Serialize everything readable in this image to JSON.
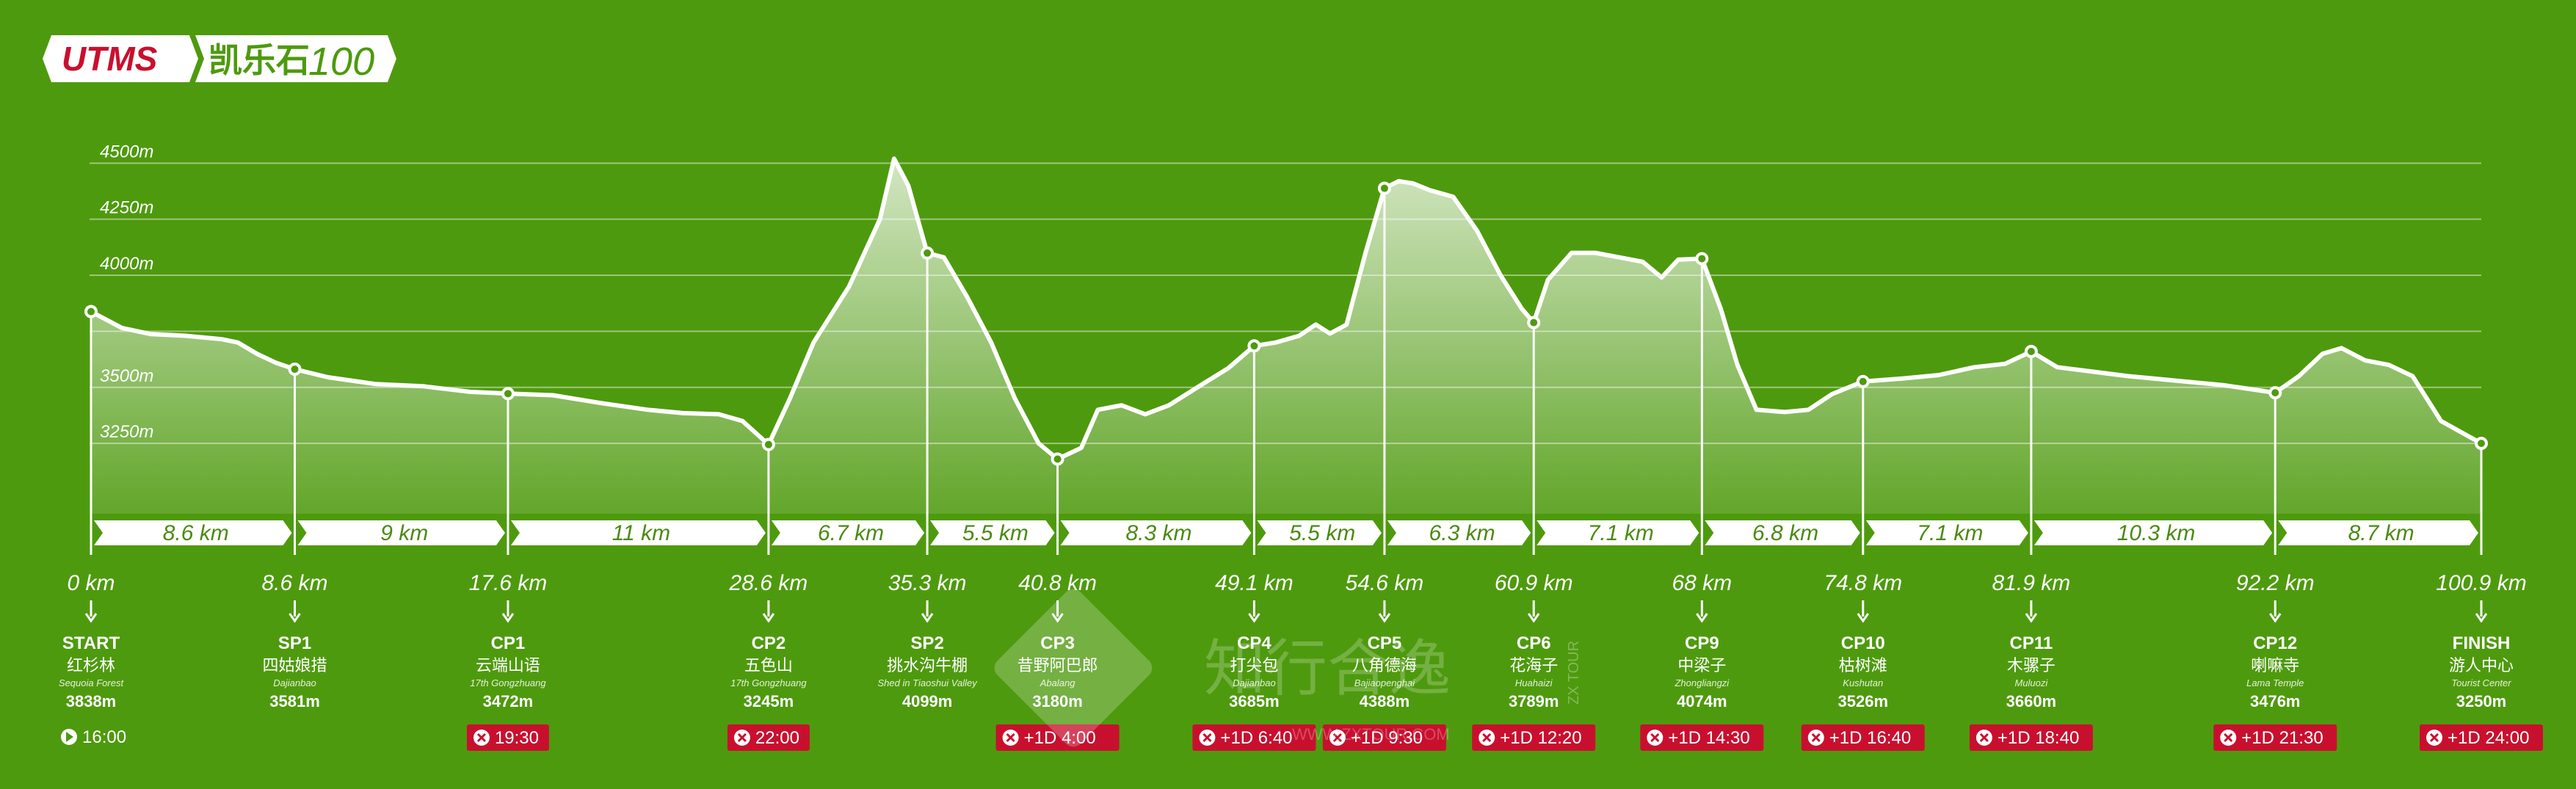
{
  "logo": {
    "brand": "UTMS",
    "race": "凯乐石",
    "distance": "100"
  },
  "watermark": {
    "text": "知行合逸",
    "side": "ZX TOUR",
    "url": "WWW.ZXTOUR.COM"
  },
  "colors": {
    "background": "#4e9a0e",
    "cutoff_badge": "#c8102e",
    "logo_red": "#c8102e"
  },
  "chart_data": {
    "type": "area",
    "title": "",
    "xlabel": "",
    "ylabel": "",
    "unit_x": "km",
    "unit_y": "m",
    "xlim": [
      0,
      100.9
    ],
    "ylim": [
      3090,
      4560
    ],
    "y_ticks": [
      {
        "value": 3250,
        "label": "3250m"
      },
      {
        "value": 3500,
        "label": "3500m"
      },
      {
        "value": 4000,
        "label": "4000m"
      },
      {
        "value": 4250,
        "label": "4250m"
      },
      {
        "value": 4500,
        "label": "4500m"
      }
    ],
    "grid_lines": [
      3250,
      3500,
      3750,
      4000,
      4250,
      4500
    ],
    "profile": [
      [
        0,
        3838
      ],
      [
        1.3,
        3765
      ],
      [
        2.5,
        3738
      ],
      [
        4,
        3730
      ],
      [
        5.5,
        3715
      ],
      [
        6.2,
        3700
      ],
      [
        7,
        3650
      ],
      [
        7.8,
        3610
      ],
      [
        8.6,
        3581
      ],
      [
        10,
        3545
      ],
      [
        12,
        3515
      ],
      [
        14,
        3505
      ],
      [
        16,
        3480
      ],
      [
        17.6,
        3472
      ],
      [
        19.5,
        3465
      ],
      [
        21.5,
        3430
      ],
      [
        23.5,
        3400
      ],
      [
        25,
        3385
      ],
      [
        26.5,
        3380
      ],
      [
        27.5,
        3350
      ],
      [
        28.6,
        3245
      ],
      [
        29.5,
        3450
      ],
      [
        30.5,
        3700
      ],
      [
        32,
        3950
      ],
      [
        33.3,
        4250
      ],
      [
        33.9,
        4520
      ],
      [
        34.5,
        4400
      ],
      [
        35.3,
        4099
      ],
      [
        36,
        4080
      ],
      [
        37,
        3900
      ],
      [
        38,
        3700
      ],
      [
        39,
        3450
      ],
      [
        40,
        3250
      ],
      [
        40.8,
        3180
      ],
      [
        41.8,
        3230
      ],
      [
        42.5,
        3400
      ],
      [
        43.5,
        3420
      ],
      [
        44.5,
        3380
      ],
      [
        45.5,
        3420
      ],
      [
        47,
        3520
      ],
      [
        48,
        3585
      ],
      [
        49.1,
        3685
      ],
      [
        50,
        3700
      ],
      [
        51,
        3730
      ],
      [
        51.7,
        3780
      ],
      [
        52.3,
        3740
      ],
      [
        53,
        3780
      ],
      [
        53.8,
        4100
      ],
      [
        54.6,
        4388
      ],
      [
        55.2,
        4420
      ],
      [
        55.8,
        4410
      ],
      [
        56.5,
        4380
      ],
      [
        57.5,
        4350
      ],
      [
        58.5,
        4200
      ],
      [
        59.5,
        4000
      ],
      [
        60.4,
        3850
      ],
      [
        60.9,
        3789
      ],
      [
        61.5,
        3980
      ],
      [
        62.5,
        4100
      ],
      [
        63.5,
        4100
      ],
      [
        64.5,
        4080
      ],
      [
        65.5,
        4060
      ],
      [
        66.3,
        3990
      ],
      [
        67,
        4070
      ],
      [
        68,
        4074
      ],
      [
        68.8,
        3850
      ],
      [
        69.5,
        3600
      ],
      [
        70.3,
        3400
      ],
      [
        71.5,
        3390
      ],
      [
        72.5,
        3400
      ],
      [
        73.5,
        3470
      ],
      [
        74.8,
        3526
      ],
      [
        76.5,
        3540
      ],
      [
        78,
        3555
      ],
      [
        79.5,
        3590
      ],
      [
        80.8,
        3605
      ],
      [
        81.9,
        3660
      ],
      [
        83,
        3590
      ],
      [
        84.5,
        3570
      ],
      [
        86,
        3550
      ],
      [
        88,
        3530
      ],
      [
        90,
        3510
      ],
      [
        92.2,
        3476
      ],
      [
        93.2,
        3550
      ],
      [
        94.2,
        3650
      ],
      [
        95,
        3675
      ],
      [
        96,
        3620
      ],
      [
        97,
        3600
      ],
      [
        98,
        3550
      ],
      [
        99.2,
        3350
      ],
      [
        100.9,
        3250
      ]
    ],
    "checkpoints": [
      {
        "km": 0,
        "km_label": "0 km",
        "code": "START",
        "name": "红杉林",
        "name_en": "Sequoia Forest",
        "alt": 3838,
        "alt_label": "3838m",
        "time": "16:00",
        "time_type": "start"
      },
      {
        "km": 8.6,
        "km_label": "8.6 km",
        "code": "SP1",
        "name": "四姑娘措",
        "name_en": "Dajianbao",
        "alt": 3581,
        "alt_label": "3581m",
        "time": "",
        "time_type": ""
      },
      {
        "km": 17.6,
        "km_label": "17.6 km",
        "code": "CP1",
        "name": "云端山语",
        "name_en": "17th Gongzhuang",
        "alt": 3472,
        "alt_label": "3472m",
        "time": "19:30",
        "time_type": "cutoff"
      },
      {
        "km": 28.6,
        "km_label": "28.6 km",
        "code": "CP2",
        "name": "五色山",
        "name_en": "17th Gongzhuang",
        "alt": 3245,
        "alt_label": "3245m",
        "time": "22:00",
        "time_type": "cutoff"
      },
      {
        "km": 35.3,
        "km_label": "35.3 km",
        "code": "SP2",
        "name": "挑水沟牛棚",
        "name_en": "Shed in Tiaoshui Valley",
        "alt": 4099,
        "alt_label": "4099m",
        "time": "",
        "time_type": ""
      },
      {
        "km": 40.8,
        "km_label": "40.8 km",
        "code": "CP3",
        "name": "昔野阿巴郎",
        "name_en": "Abalang",
        "alt": 3180,
        "alt_label": "3180m",
        "time": "+1D 4:00",
        "time_type": "cutoff"
      },
      {
        "km": 49.1,
        "km_label": "49.1 km",
        "code": "CP4",
        "name": "打尖包",
        "name_en": "Dajianbao",
        "alt": 3685,
        "alt_label": "3685m",
        "time": "+1D 6:40",
        "time_type": "cutoff"
      },
      {
        "km": 54.6,
        "km_label": "54.6 km",
        "code": "CP5",
        "name": "八角德海",
        "name_en": "Bajiaopenghai",
        "alt": 4388,
        "alt_label": "4388m",
        "time": "+1D 9:30",
        "time_type": "cutoff"
      },
      {
        "km": 60.9,
        "km_label": "60.9 km",
        "code": "CP6",
        "name": "花海子",
        "name_en": "Huahaizi",
        "alt": 3789,
        "alt_label": "3789m",
        "time": "+1D 12:20",
        "time_type": "cutoff"
      },
      {
        "km": 68,
        "km_label": "68 km",
        "code": "CP9",
        "name": "中梁子",
        "name_en": "Zhongliangzi",
        "alt": 4074,
        "alt_label": "4074m",
        "time": "+1D 14:30",
        "time_type": "cutoff"
      },
      {
        "km": 74.8,
        "km_label": "74.8 km",
        "code": "CP10",
        "name": "枯树滩",
        "name_en": "Kushutan",
        "alt": 3526,
        "alt_label": "3526m",
        "time": "+1D 16:40",
        "time_type": "cutoff"
      },
      {
        "km": 81.9,
        "km_label": "81.9 km",
        "code": "CP11",
        "name": "木骡子",
        "name_en": "Muluozi",
        "alt": 3660,
        "alt_label": "3660m",
        "time": "+1D 18:40",
        "time_type": "cutoff"
      },
      {
        "km": 92.2,
        "km_label": "92.2 km",
        "code": "CP12",
        "name": "喇嘛寺",
        "name_en": "Lama Temple",
        "alt": 3476,
        "alt_label": "3476m",
        "time": "+1D 21:30",
        "time_type": "cutoff"
      },
      {
        "km": 100.9,
        "km_label": "100.9 km",
        "code": "FINISH",
        "name": "游人中心",
        "name_en": "Tourist Center",
        "alt": 3250,
        "alt_label": "3250m",
        "time": "+1D 24:00",
        "time_type": "cutoff"
      }
    ],
    "segments": [
      {
        "from": 0,
        "to": 8.6,
        "label": "8.6 km"
      },
      {
        "from": 8.6,
        "to": 17.6,
        "label": "9 km"
      },
      {
        "from": 17.6,
        "to": 28.6,
        "label": "11 km"
      },
      {
        "from": 28.6,
        "to": 35.3,
        "label": "6.7 km"
      },
      {
        "from": 35.3,
        "to": 40.8,
        "label": "5.5 km"
      },
      {
        "from": 40.8,
        "to": 49.1,
        "label": "8.3 km"
      },
      {
        "from": 49.1,
        "to": 54.6,
        "label": "5.5 km"
      },
      {
        "from": 54.6,
        "to": 60.9,
        "label": "6.3 km"
      },
      {
        "from": 60.9,
        "to": 68,
        "label": "7.1 km"
      },
      {
        "from": 68,
        "to": 74.8,
        "label": "6.8 km"
      },
      {
        "from": 74.8,
        "to": 81.9,
        "label": "7.1 km"
      },
      {
        "from": 81.9,
        "to": 92.2,
        "label": "10.3 km"
      },
      {
        "from": 92.2,
        "to": 100.9,
        "label": "8.7 km"
      }
    ]
  }
}
